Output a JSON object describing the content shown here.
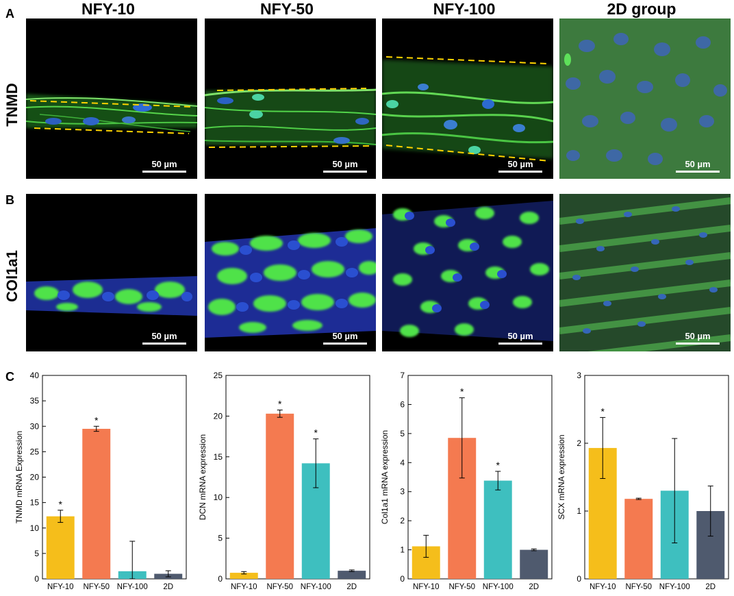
{
  "figure": {
    "panel_labels": [
      "A",
      "B",
      "C"
    ],
    "column_headers": [
      "NFY-10",
      "NFY-50",
      "NFY-100",
      "2D group"
    ],
    "row_labels": [
      "TNMD",
      "COl1a1"
    ],
    "scale_bar_label": "50 µm"
  },
  "colors": {
    "yellow": "#F5BE1B",
    "orange": "#F47A50",
    "teal": "#3EBFBF",
    "slate": "#4F5A6E"
  },
  "chart_data": [
    {
      "type": "bar",
      "categories": [
        "NFY-10",
        "NFY-50",
        "NFY-100",
        "2D"
      ],
      "values": [
        12.3,
        29.5,
        1.5,
        1.0
      ],
      "errors": [
        1.2,
        0.5,
        5.9,
        0.6
      ],
      "significance": [
        "*",
        "*",
        "",
        ""
      ],
      "ylabel": "TNMD mRNA Expression",
      "ylim": [
        0,
        40
      ],
      "yticks": [
        0,
        5,
        10,
        15,
        20,
        25,
        30,
        35,
        40
      ]
    },
    {
      "type": "bar",
      "categories": [
        "NFY-10",
        "NFY-50",
        "NFY-100",
        "2D"
      ],
      "values": [
        0.75,
        20.3,
        14.2,
        1.0
      ],
      "errors": [
        0.15,
        0.45,
        3.0,
        0.1
      ],
      "significance": [
        "",
        "*",
        "*",
        ""
      ],
      "ylabel": "DCN mRNA expression",
      "ylim": [
        0,
        25
      ],
      "yticks": [
        0,
        5,
        10,
        15,
        20,
        25
      ]
    },
    {
      "type": "bar",
      "categories": [
        "NFY-10",
        "NFY-50",
        "NFY-100",
        "2D"
      ],
      "values": [
        1.12,
        4.85,
        3.38,
        1.0
      ],
      "errors": [
        0.38,
        1.38,
        0.32,
        0.03
      ],
      "significance": [
        "",
        "*",
        "*",
        ""
      ],
      "ylabel": "Col1a1 mRNA expression",
      "ylim": [
        0,
        7
      ],
      "yticks": [
        0,
        1,
        2,
        3,
        4,
        5,
        6,
        7
      ]
    },
    {
      "type": "bar",
      "categories": [
        "NFY-10",
        "NFY-50",
        "NFY-100",
        "2D"
      ],
      "values": [
        1.93,
        1.18,
        1.3,
        1.0
      ],
      "errors": [
        0.45,
        0.01,
        0.77,
        0.37
      ],
      "significance": [
        "*",
        "",
        "",
        ""
      ],
      "ylabel": "SCX mRNA expression",
      "ylim": [
        0,
        3
      ],
      "yticks": [
        0,
        1,
        2,
        3
      ]
    }
  ]
}
